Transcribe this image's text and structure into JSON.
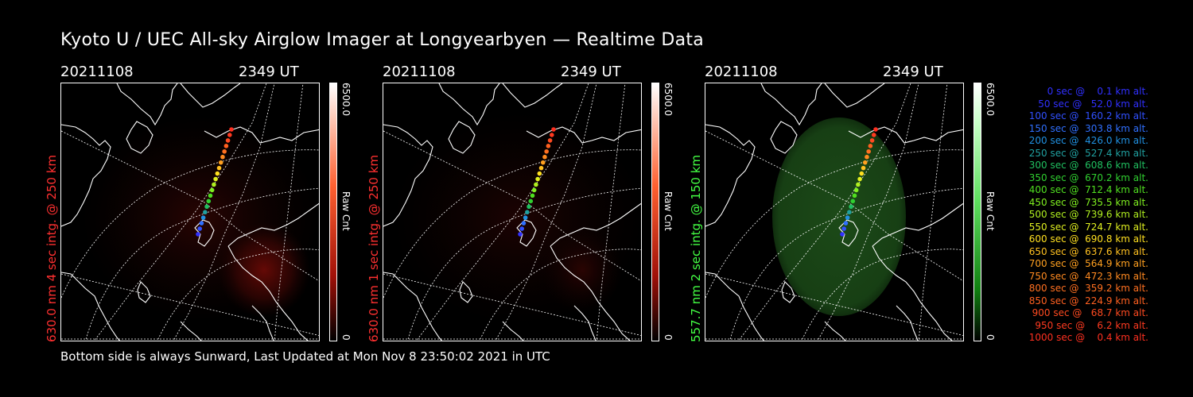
{
  "title": "Kyoto U / UEC All-sky Airglow Imager at Longyearbyen — Realtime Data",
  "footer": "Bottom side is always Sunward, Last Updated at Mon Nov  8 23:50:02 2021 in UTC",
  "colors": {
    "red": "#ff3030",
    "green": "#44ff44",
    "axis": "#ffffff"
  },
  "panels": [
    {
      "date": "20211108",
      "ut": "2349 UT",
      "ylabel": "630.0 nm 4 sec intg. @ 250 km",
      "ylabel_color": "#ff3030",
      "cbar_max": "6500.0",
      "cbar_unit": "Raw Cnt",
      "cbar_min": "0",
      "cmap": "red",
      "glow": "red-patch"
    },
    {
      "date": "20211108",
      "ut": "2349 UT",
      "ylabel": "630.0 nm 1 sec intg. @ 250 km",
      "ylabel_color": "#ff3030",
      "cbar_max": "6500.0",
      "cbar_unit": "Raw Cnt",
      "cbar_min": "0",
      "cmap": "red",
      "glow": "red-faint"
    },
    {
      "date": "20211108",
      "ut": "2349 UT",
      "ylabel": "557.7 nm 2 sec intg. @ 150 km",
      "ylabel_color": "#44ff44",
      "cbar_max": "6500.0",
      "cbar_unit": "Raw Cnt",
      "cbar_min": "0",
      "cmap": "green",
      "glow": "green-disc"
    }
  ],
  "legend": [
    {
      "text": "   0 sec @    0.1 km alt.",
      "color": "#3030ff"
    },
    {
      "text": "  50 sec @   52.0 km alt.",
      "color": "#3030ff"
    },
    {
      "text": " 100 sec @  160.2 km alt.",
      "color": "#3050ff"
    },
    {
      "text": " 150 sec @  303.8 km alt.",
      "color": "#3070ff"
    },
    {
      "text": " 200 sec @  426.0 km alt.",
      "color": "#2090e0"
    },
    {
      "text": " 250 sec @  527.4 km alt.",
      "color": "#20a0a0"
    },
    {
      "text": " 300 sec @  608.6 km alt.",
      "color": "#20c060"
    },
    {
      "text": " 350 sec @  670.2 km alt.",
      "color": "#30d030"
    },
    {
      "text": " 400 sec @  712.4 km alt.",
      "color": "#50e020"
    },
    {
      "text": " 450 sec @  735.5 km alt.",
      "color": "#80f020"
    },
    {
      "text": " 500 sec @  739.6 km alt.",
      "color": "#b0f020"
    },
    {
      "text": " 550 sec @  724.7 km alt.",
      "color": "#e0f020"
    },
    {
      "text": " 600 sec @  690.8 km alt.",
      "color": "#ffe020"
    },
    {
      "text": " 650 sec @  637.6 km alt.",
      "color": "#ffc020"
    },
    {
      "text": " 700 sec @  564.9 km alt.",
      "color": "#ffa020"
    },
    {
      "text": " 750 sec @  472.3 km alt.",
      "color": "#ff8a20"
    },
    {
      "text": " 800 sec @  359.2 km alt.",
      "color": "#ff7020"
    },
    {
      "text": " 850 sec @  224.9 km alt.",
      "color": "#ff6020"
    },
    {
      "text": " 900 sec @   68.7 km alt.",
      "color": "#ff4a20"
    },
    {
      "text": " 950 sec @    6.2 km alt.",
      "color": "#ff3a20"
    },
    {
      "text": "1000 sec @    0.4 km alt.",
      "color": "#ff3020"
    }
  ]
}
